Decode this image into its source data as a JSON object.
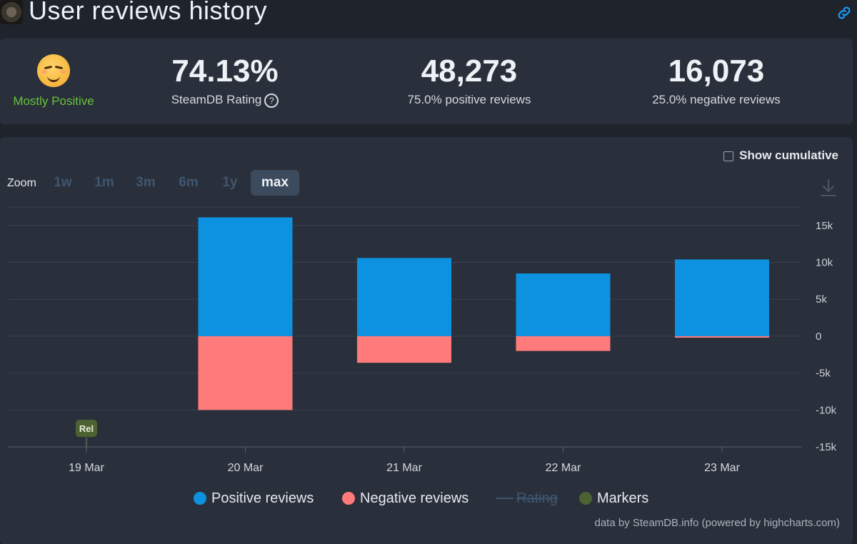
{
  "header": {
    "title": "User reviews history"
  },
  "summary": {
    "verdict": "Mostly Positive",
    "rating": {
      "value": "74.13%",
      "label": "SteamDB Rating",
      "help": "?"
    },
    "positive": {
      "value": "48,273",
      "label": "75.0% positive reviews"
    },
    "negative": {
      "value": "16,073",
      "label": "25.0% negative reviews"
    }
  },
  "controls": {
    "cumulative_label": "Show cumulative",
    "zoom_label": "Zoom",
    "zoom_options": [
      "1w",
      "1m",
      "3m",
      "6m",
      "1y",
      "max"
    ],
    "zoom_selected": "max"
  },
  "credits": "data by SteamDB.info (powered by highcharts.com)",
  "colors": {
    "positive": "#0c92e0",
    "negative": "#ff7b7b",
    "verdict": "#66c23a",
    "markers": "#4c6232"
  },
  "chart_data": {
    "type": "bar",
    "categories": [
      "19 Mar",
      "20 Mar",
      "21 Mar",
      "22 Mar",
      "23 Mar"
    ],
    "series": [
      {
        "name": "Positive reviews",
        "values": [
          0,
          16100,
          10600,
          8500,
          10400
        ]
      },
      {
        "name": "Negative reviews",
        "values": [
          0,
          -10000,
          -3600,
          -2000,
          -200
        ]
      }
    ],
    "legend": [
      "Positive reviews",
      "Negative reviews",
      "Rating",
      "Markers"
    ],
    "hidden_series": [
      "Rating"
    ],
    "y_ticks": [
      "15k",
      "10k",
      "5k",
      "0",
      "-5k",
      "-10k",
      "-15k"
    ],
    "ylim": [
      -15000,
      15000
    ],
    "grid": true,
    "markers": [
      {
        "category": "19 Mar",
        "label": "Rel"
      }
    ]
  }
}
